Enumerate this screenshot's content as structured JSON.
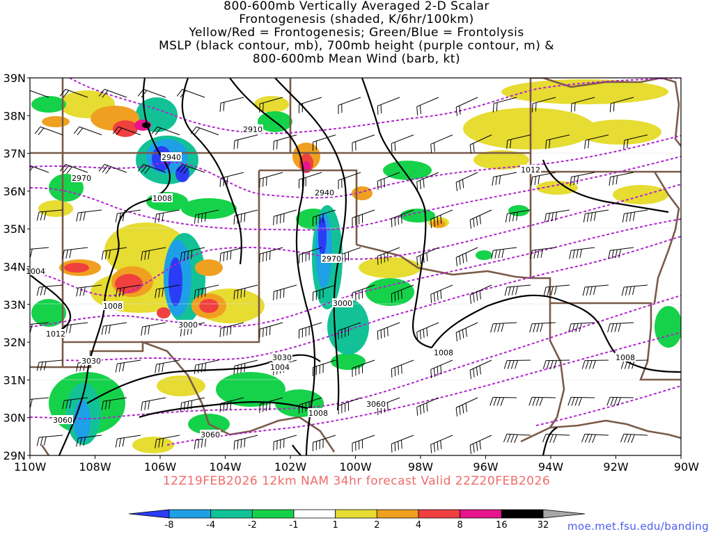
{
  "title_lines": [
    "800-600mb Vertically Averaged 2-D Scalar",
    "Frontogenesis (shaded, K/6hr/100km)",
    "Yellow/Red = Frontogenesis;  Green/Blue = Frontolysis",
    "MSLP (black contour, mb), 700mb height (purple contour, m) &",
    "800-600mb Mean Wind (barb, kt)"
  ],
  "lat_labels": [
    "39N",
    "38N",
    "37N",
    "36N",
    "35N",
    "34N",
    "33N",
    "32N",
    "31N",
    "30N",
    "29N"
  ],
  "lon_labels": [
    "110W",
    "108W",
    "106W",
    "104W",
    "102W",
    "100W",
    "98W",
    "96W",
    "94W",
    "92W",
    "90W"
  ],
  "contour_labels": {
    "height": [
      "2910",
      "2940",
      "2970",
      "2940",
      "2970",
      "3000",
      "3000",
      "3030",
      "3030",
      "3060",
      "3060",
      "3060"
    ],
    "pressure": [
      "1008",
      "1008",
      "1012",
      "1012",
      "1008",
      "1008",
      "1004",
      "1004",
      "1008"
    ]
  },
  "colorbar": {
    "ticks": [
      "-8",
      "-4",
      "-2",
      "-1",
      "1",
      "2",
      "4",
      "8",
      "16",
      "32"
    ],
    "colors": [
      "#2a3cf5",
      "#1ea0e6",
      "#12c296",
      "#15d24a",
      "#ffffff",
      "#e6dc32",
      "#f0a020",
      "#f04040",
      "#e8148c",
      "#000000",
      "#a8a8a8"
    ]
  },
  "colors": {
    "pressure_contour": "#000000",
    "height_contour": "#b026cc",
    "borders": "#7a5a48",
    "forecast_text": "#f06a6a",
    "credit_text": "#4a5cf0"
  },
  "forecast_text": "12Z19FEB2026 12km NAM 34hr forecast Valid 22Z20FEB2026",
  "credit": "moe.met.fsu.edu/banding"
}
